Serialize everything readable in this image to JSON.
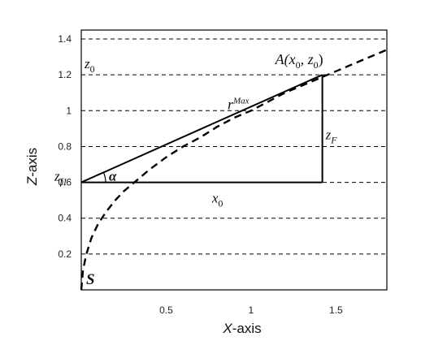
{
  "chart_data": {
    "type": "line",
    "xlabel": {
      "var": "X",
      "rest": "-axis"
    },
    "ylabel": {
      "var": "Z",
      "rest": "-axis"
    },
    "xlim": [
      0,
      1.8
    ],
    "ylim": [
      0,
      1.45
    ],
    "x_ticks": [
      {
        "v": 0.5,
        "label": "0.5"
      },
      {
        "v": 1.0,
        "label": "1"
      },
      {
        "v": 1.5,
        "label": "1.5"
      }
    ],
    "y_ticks": [
      {
        "v": 0.2,
        "label": "0.2"
      },
      {
        "v": 0.4,
        "label": "0.4"
      },
      {
        "v": 0.6,
        "label": "0.6"
      },
      {
        "v": 0.8,
        "label": "0.8"
      },
      {
        "v": 1.0,
        "label": "1"
      },
      {
        "v": 1.2,
        "label": "1.2"
      },
      {
        "v": 1.4,
        "label": "1.4"
      }
    ],
    "grid": "horizontal dashed",
    "series": [
      {
        "style": "dashed",
        "x": [
          0,
          0.01,
          0.03,
          0.06,
          0.1,
          0.15,
          0.2,
          0.25,
          0.3,
          0.4,
          0.5,
          0.6,
          0.7,
          0.8,
          0.9,
          1.0,
          1.1,
          1.2,
          1.3,
          1.4,
          1.5,
          1.6,
          1.7,
          1.8
        ],
        "y": [
          0.0,
          0.11,
          0.2,
          0.29,
          0.37,
          0.44,
          0.5,
          0.55,
          0.59,
          0.67,
          0.74,
          0.8,
          0.85,
          0.91,
          0.96,
          1.0,
          1.05,
          1.1,
          1.14,
          1.18,
          1.22,
          1.26,
          1.3,
          1.34
        ]
      }
    ],
    "lines": {
      "r_max": {
        "from": [
          0,
          0.6
        ],
        "to": [
          1.42,
          1.2
        ]
      },
      "x0": {
        "from": [
          0,
          0.6
        ],
        "to": [
          1.42,
          0.6
        ]
      },
      "zF": {
        "from": [
          1.42,
          0.6
        ],
        "to": [
          1.42,
          1.2
        ]
      }
    },
    "annotations": {
      "point_A": {
        "main": "A(x",
        "sub1": "0",
        "mid": ", z",
        "sub2": "0",
        "end": ")",
        "x": 1.42,
        "y": 1.2
      },
      "z0": {
        "main": "z",
        "sub": "0",
        "y": 1.2
      },
      "zf1": {
        "main": "z",
        "sub": "f1",
        "y": 0.6
      },
      "r_max": {
        "main": "r",
        "sub": "Max"
      },
      "zF": {
        "main": "z",
        "sub": "F"
      },
      "x0": {
        "main": "x",
        "sub": "0"
      },
      "alpha": {
        "main": "α"
      },
      "origin": {
        "main": "S"
      }
    }
  }
}
